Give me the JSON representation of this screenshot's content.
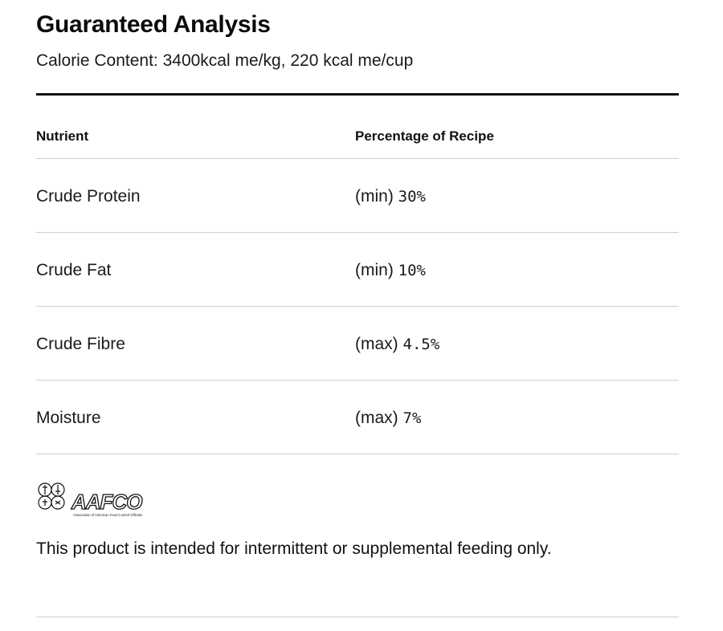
{
  "header": {
    "title": "Guaranteed Analysis",
    "calorie_content": "Calorie Content: 3400kcal me/kg, 220 kcal me/cup"
  },
  "table": {
    "columns": [
      "Nutrient",
      "Percentage of Recipe"
    ],
    "rows": [
      {
        "nutrient": "Crude Protein",
        "qualifier": "(min)",
        "value": "30%"
      },
      {
        "nutrient": "Crude Fat",
        "qualifier": "(min)",
        "value": "10%"
      },
      {
        "nutrient": "Crude Fibre",
        "qualifier": "(max)",
        "value": "4.5%"
      },
      {
        "nutrient": "Moisture",
        "qualifier": "(max)",
        "value": "7%"
      }
    ]
  },
  "logo": {
    "text": "AAFCO",
    "caption": "Association of American Feed Control Officials"
  },
  "footer": {
    "note": "This product is intended for intermittent or supplemental feeding only."
  }
}
